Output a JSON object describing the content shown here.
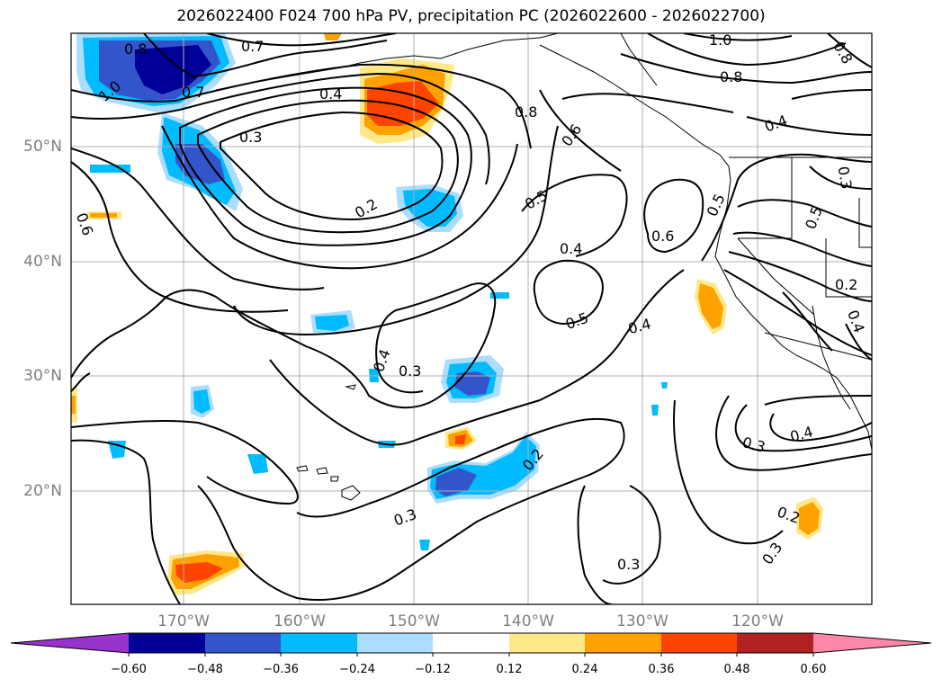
{
  "title": "2026022400 F024 700 hPa PV, precipitation PC (2026022600 - 2026022700)",
  "latitude_labels": [
    "50°N",
    "40°N",
    "30°N",
    "20°N"
  ],
  "longitude_labels": [
    "170°W",
    "160°W",
    "150°W",
    "140°W",
    "130°W",
    "120°W"
  ],
  "colorbar": {
    "tick_labels": [
      "−0.60",
      "−0.48",
      "−0.36",
      "−0.24",
      "−0.12",
      "0.12",
      "0.24",
      "0.36",
      "0.48",
      "0.60"
    ],
    "colors": [
      "#9933cc",
      "#000099",
      "#3355cc",
      "#00bbff",
      "#aaddff",
      "#ffffff",
      "#ffe888",
      "#ffa200",
      "#ff4400",
      "#b22222",
      "#ff88aa"
    ],
    "extend": "both"
  },
  "contour_labels": {
    "c1": "0.8",
    "c2": "0.7",
    "c3": "1.0",
    "c4": "0.7",
    "c5": "0.4",
    "c6": "0.3",
    "c7": "0.2",
    "c8": "0.6",
    "c9": "0.8",
    "c10": "0.6",
    "c11": "0.5",
    "c12": "0.4",
    "c13": "0.6",
    "c14": "0.5",
    "c15": "0.4",
    "c16": "0.5",
    "c17": "0.4",
    "c18": "0.3",
    "c19": "1.0",
    "c20": "0.8",
    "c21": "0.4",
    "c22": "0.8",
    "c23": "0.3",
    "c24": "0.5",
    "c25": "0.2",
    "c26": "0.4",
    "c27": "0.3",
    "c28": "0.4",
    "c29": "0.2",
    "c30": "0.3",
    "c31": "0.3",
    "c32": "0.2",
    "c33": "0.3"
  }
}
